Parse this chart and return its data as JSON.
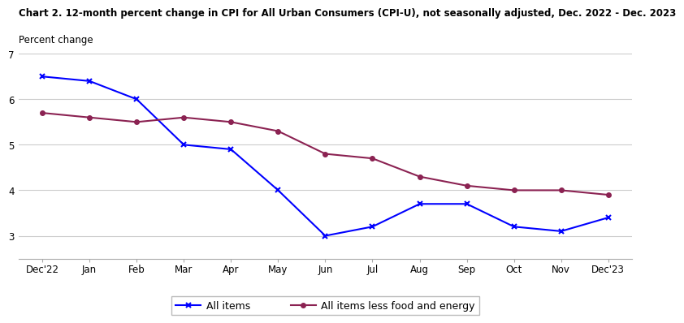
{
  "title": "Chart 2. 12-month percent change in CPI for All Urban Consumers (CPI-U), not seasonally adjusted, Dec. 2022 - Dec. 2023",
  "ylabel": "Percent change",
  "x_labels": [
    "Dec'22",
    "Jan",
    "Feb",
    "Mar",
    "Apr",
    "May",
    "Jun",
    "Jul",
    "Aug",
    "Sep",
    "Oct",
    "Nov",
    "Dec'23"
  ],
  "all_items": [
    6.5,
    6.4,
    6.0,
    5.0,
    4.9,
    4.0,
    3.0,
    3.2,
    3.7,
    3.7,
    3.2,
    3.1,
    3.4
  ],
  "all_items_less": [
    5.7,
    5.6,
    5.5,
    5.6,
    5.5,
    5.3,
    4.8,
    4.7,
    4.3,
    4.1,
    4.0,
    4.0,
    3.9
  ],
  "ylim": [
    2.5,
    7.0
  ],
  "yticks": [
    3,
    4,
    5,
    6,
    7
  ],
  "all_items_color": "#0000FF",
  "all_items_less_color": "#8B2252",
  "marker_all": "x",
  "marker_less": "o",
  "legend_label_all": "All items",
  "legend_label_less": "All items less food and energy",
  "background_color": "#FFFFFF",
  "grid_color": "#CCCCCC",
  "title_fontsize": 8.5,
  "ylabel_fontsize": 8.5,
  "tick_fontsize": 8.5,
  "legend_fontsize": 9
}
